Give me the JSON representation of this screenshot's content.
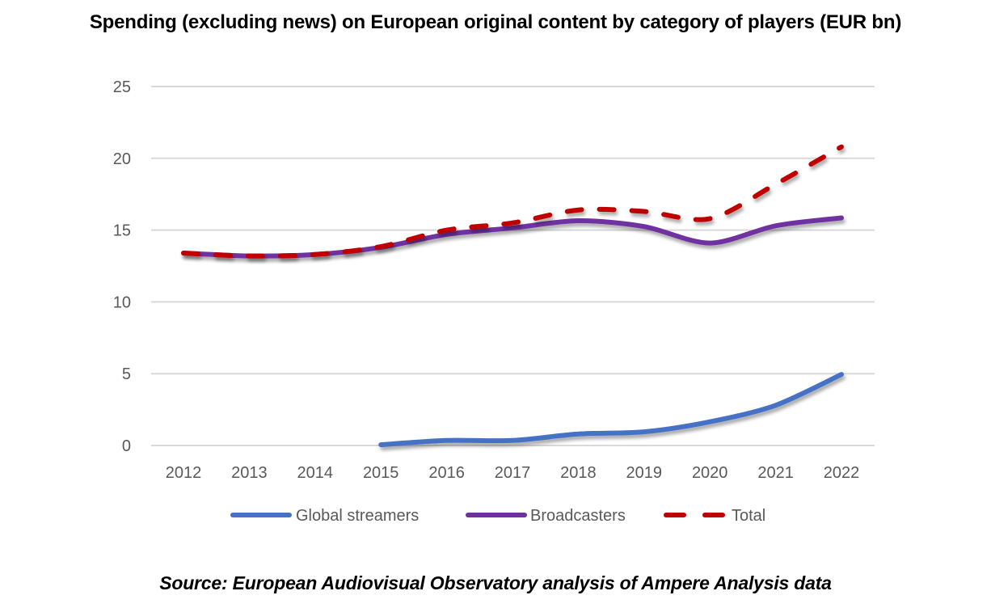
{
  "chart_data": {
    "type": "line",
    "title": "Spending (excluding news) on European original content by category of players (EUR bn)",
    "source": "Source: European Audiovisual Observatory analysis of Ampere Analysis data",
    "xlabel": "",
    "ylabel": "",
    "x": [
      "2012",
      "2013",
      "2014",
      "2015",
      "2016",
      "2017",
      "2018",
      "2019",
      "2020",
      "2021",
      "2022"
    ],
    "yticks": [
      "0",
      "5",
      "10",
      "15",
      "20",
      "25"
    ],
    "ylim": [
      0,
      25
    ],
    "grid": true,
    "legend_position": "bottom",
    "series": [
      {
        "name": "Global streamers",
        "color": "#4472C4",
        "style": "solid",
        "values": [
          null,
          null,
          null,
          0.05,
          0.35,
          0.35,
          0.8,
          0.95,
          1.65,
          2.8,
          4.95
        ]
      },
      {
        "name": "Broadcasters",
        "color": "#7030A0",
        "style": "solid",
        "values": [
          13.4,
          13.2,
          13.3,
          13.8,
          14.7,
          15.15,
          15.65,
          15.25,
          14.1,
          15.3,
          15.85
        ]
      },
      {
        "name": "Total",
        "color": "#C00000",
        "style": "dashed",
        "values": [
          13.4,
          13.2,
          13.3,
          13.85,
          15.0,
          15.5,
          16.4,
          16.3,
          15.8,
          18.2,
          20.8
        ]
      }
    ]
  }
}
